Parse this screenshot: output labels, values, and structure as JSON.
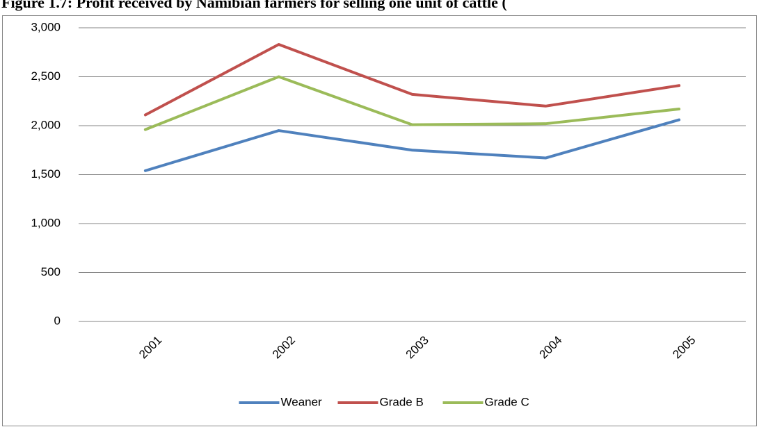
{
  "chart_data": {
    "type": "line",
    "title": "Figure 1.7: Profit received by Namibian farmers for selling one unit of cattle (",
    "categories": [
      "2001",
      "2002",
      "2003",
      "2004",
      "2005"
    ],
    "series": [
      {
        "name": "Weaner",
        "color": "#4f81bd",
        "values": [
          1540,
          1950,
          1750,
          1670,
          2060
        ]
      },
      {
        "name": "Grade B",
        "color": "#c0504d",
        "values": [
          2110,
          2830,
          2320,
          2200,
          2410
        ]
      },
      {
        "name": "Grade C",
        "color": "#9bbb59",
        "values": [
          1960,
          2500,
          2010,
          2020,
          2170
        ]
      }
    ],
    "ylim": [
      0,
      3000
    ],
    "yticks": [
      0,
      500,
      {
        "value": 1000,
        "label": "1,000"
      },
      {
        "value": 1500,
        "label": "1,500"
      },
      {
        "value": 2000,
        "label": "2,000"
      },
      {
        "value": 2500,
        "label": "2,500"
      },
      {
        "value": 3000,
        "label": "3,000"
      }
    ],
    "grid": true,
    "legend": "bottom"
  }
}
